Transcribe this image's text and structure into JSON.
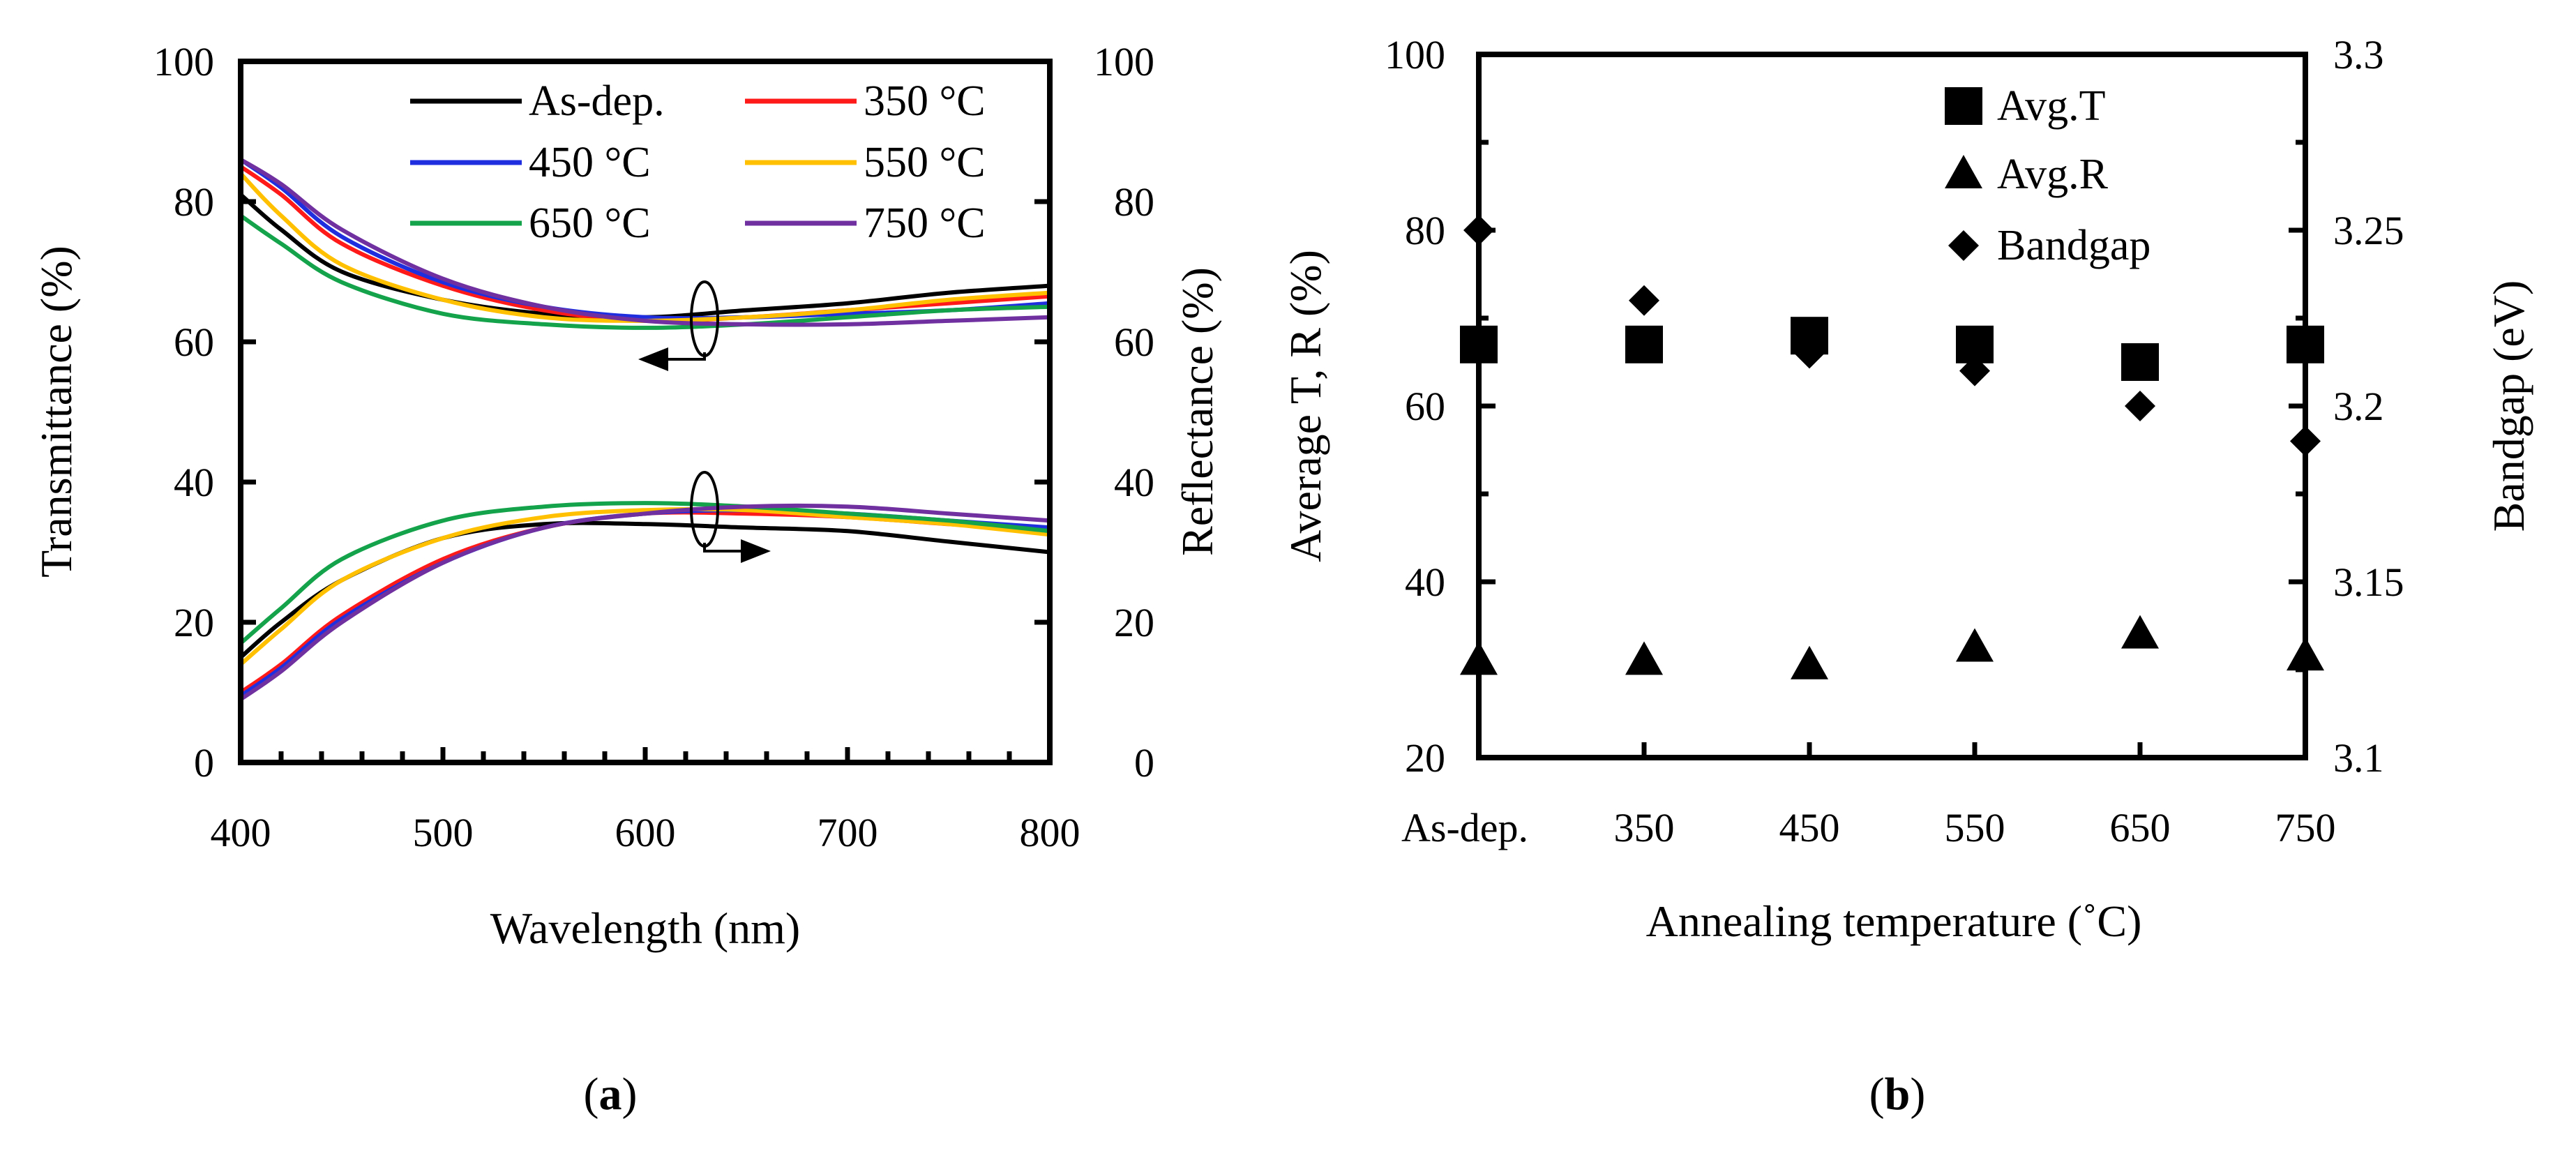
{
  "chart_data": [
    {
      "panel": "a",
      "type": "line",
      "panel_label_parts": [
        "(",
        "a",
        ")"
      ],
      "xlabel": "Wavelength (nm)",
      "ylabel": "Transmittance (%)",
      "y2label": "Reflectance (%)",
      "xlim": [
        400,
        800
      ],
      "ylim": [
        0,
        100
      ],
      "y2lim": [
        0,
        100
      ],
      "xticks": [
        "400",
        "500",
        "600",
        "700",
        "800"
      ],
      "yticks": [
        "0",
        "20",
        "40",
        "60",
        "80",
        "100"
      ],
      "y2ticks": [
        "0",
        "20",
        "40",
        "60",
        "80",
        "100"
      ],
      "legend_position": "top-right",
      "annotations": [
        {
          "text": "arrow-left",
          "meaning": "transmittance curves use left axis",
          "at": [
            630,
            62
          ]
        },
        {
          "text": "arrow-right",
          "meaning": "reflectance curves use right axis",
          "at": [
            630,
            35
          ]
        }
      ],
      "series": [
        {
          "name": "As-dep.",
          "color": "#000000",
          "transmittance": {
            "x": [
              400,
              420,
              450,
              500,
              550,
              600,
              650,
              700,
              750,
              800
            ],
            "y": [
              81,
              76,
              70,
              66,
              64,
              63.5,
              64.5,
              65.5,
              67,
              68
            ]
          },
          "reflectance": {
            "x": [
              400,
              420,
              450,
              500,
              550,
              600,
              650,
              700,
              750,
              800
            ],
            "y": [
              15,
              20,
              26,
              32,
              34,
              34,
              33.5,
              33,
              31.5,
              30
            ]
          }
        },
        {
          "name": "350 °C",
          "color": "#ff1a1a",
          "transmittance": {
            "x": [
              400,
              420,
              450,
              500,
              550,
              600,
              650,
              700,
              750,
              800
            ],
            "y": [
              85,
              81,
              74,
              68,
              64.5,
              63,
              63.5,
              64.5,
              65.5,
              66.5
            ]
          },
          "reflectance": {
            "x": [
              400,
              420,
              450,
              500,
              550,
              600,
              650,
              700,
              750,
              800
            ],
            "y": [
              10,
              14,
              21,
              29,
              33.5,
              35.5,
              35.5,
              35,
              34,
              33
            ]
          }
        },
        {
          "name": "450 °C",
          "color": "#1f2fe0",
          "transmittance": {
            "x": [
              400,
              420,
              450,
              500,
              550,
              600,
              650,
              700,
              750,
              800
            ],
            "y": [
              86,
              82,
              75,
              68.5,
              65,
              63.5,
              63.5,
              64,
              64.5,
              65.5
            ]
          },
          "reflectance": {
            "x": [
              400,
              420,
              450,
              500,
              550,
              600,
              650,
              700,
              750,
              800
            ],
            "y": [
              9.5,
              13.5,
              20.5,
              28.5,
              33.5,
              35.5,
              36,
              35.5,
              34.5,
              33.5
            ]
          }
        },
        {
          "name": "550 °C",
          "color": "#ffc000",
          "transmittance": {
            "x": [
              400,
              420,
              450,
              500,
              550,
              600,
              650,
              700,
              750,
              800
            ],
            "y": [
              84,
              78,
              71,
              66,
              63.5,
              63,
              63.5,
              64.5,
              66,
              67
            ]
          },
          "reflectance": {
            "x": [
              400,
              420,
              450,
              500,
              550,
              600,
              650,
              700,
              750,
              800
            ],
            "y": [
              14,
              19,
              26,
              32,
              35,
              36,
              36,
              35,
              34,
              32.5
            ]
          }
        },
        {
          "name": "650 °C",
          "color": "#14a34a",
          "transmittance": {
            "x": [
              400,
              420,
              450,
              500,
              550,
              600,
              650,
              700,
              750,
              800
            ],
            "y": [
              78,
              74,
              68.5,
              64,
              62.5,
              62,
              62.5,
              63.5,
              64.5,
              65
            ]
          },
          "reflectance": {
            "x": [
              400,
              420,
              450,
              500,
              550,
              600,
              650,
              700,
              750,
              800
            ],
            "y": [
              17,
              22,
              29,
              34.5,
              36.5,
              37,
              36.5,
              35.5,
              34.5,
              33
            ]
          }
        },
        {
          "name": "750 °C",
          "color": "#7030a0",
          "transmittance": {
            "x": [
              400,
              420,
              450,
              500,
              550,
              600,
              650,
              700,
              750,
              800
            ],
            "y": [
              86,
              82.5,
              76,
              69,
              65,
              63,
              62.5,
              62.5,
              63,
              63.5
            ]
          },
          "reflectance": {
            "x": [
              400,
              420,
              450,
              500,
              550,
              600,
              650,
              700,
              750,
              800
            ],
            "y": [
              9,
              13,
              20,
              28.5,
              33.5,
              35.5,
              36.5,
              36.5,
              35.5,
              34.5
            ]
          }
        }
      ]
    },
    {
      "panel": "b",
      "type": "scatter",
      "panel_label_parts": [
        "(",
        "b",
        ")"
      ],
      "xlabel": "Annealing temperature (˚C)",
      "ylabel": "Average T, R (%)",
      "y2label": "Bandgap (eV)",
      "categories": [
        "As-dep.",
        "350",
        "450",
        "550",
        "650",
        "750"
      ],
      "ylim": [
        20,
        100
      ],
      "y2lim": [
        3.1,
        3.3
      ],
      "yticks": [
        "20",
        "40",
        "60",
        "80",
        "100"
      ],
      "y2ticks": [
        "3.1",
        "3.15",
        "3.2",
        "3.25",
        "3.3"
      ],
      "legend_position": "top-right",
      "series": [
        {
          "name": "Avg.T",
          "marker": "square",
          "axis": "left",
          "values": [
            67,
            67,
            68,
            67,
            65,
            67
          ]
        },
        {
          "name": "Avg.R",
          "marker": "triangle",
          "axis": "left",
          "values": [
            31,
            31,
            30.5,
            32.5,
            34,
            31.5
          ]
        },
        {
          "name": "Bandgap",
          "marker": "diamond",
          "axis": "right",
          "values": [
            3.25,
            3.23,
            3.215,
            3.21,
            3.2,
            3.19
          ]
        }
      ]
    }
  ]
}
